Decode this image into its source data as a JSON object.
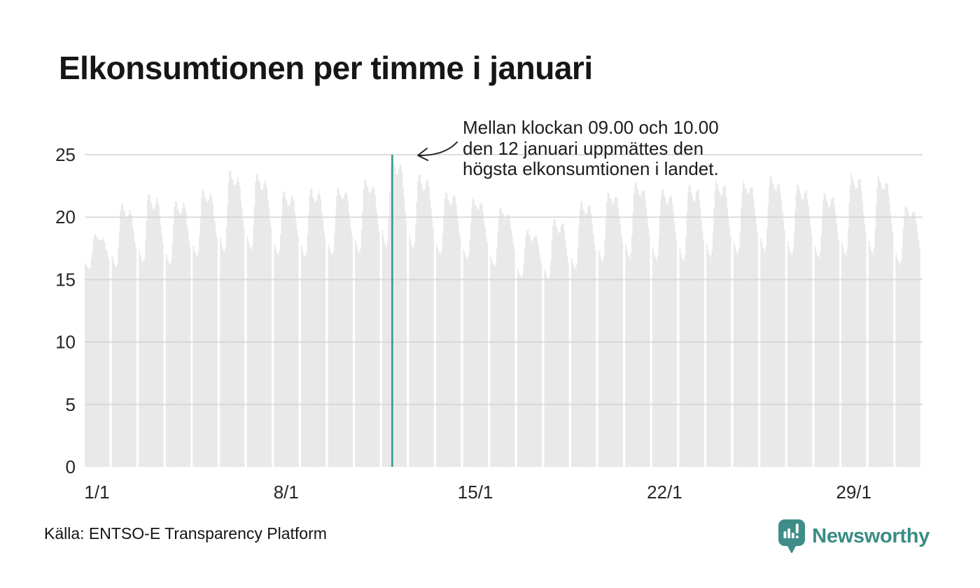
{
  "title": "Elkonsumtionen per timme i januari",
  "annotation": {
    "lines": [
      "Mellan klockan 09.00 och 10.00",
      "den 12 januari uppmättes den",
      "högsta elkonsumtionen i landet."
    ]
  },
  "source": "Källa: ENTSO-E Transparency Platform",
  "branding": {
    "name": "Newsworthy"
  },
  "colors": {
    "bar": "#e9e9e9",
    "gridline": "#d4d4d4",
    "marker": "#2a9a8c",
    "brand": "#3a8c85",
    "text": "#1c1c1c"
  },
  "chart_data": {
    "type": "bar",
    "title": "Elkonsumtionen per timme i januari",
    "xlabel": "",
    "ylabel": "",
    "ylim": [
      0,
      25
    ],
    "y_ticks": [
      0,
      5,
      10,
      15,
      20,
      25
    ],
    "x_ticks": [
      {
        "day": 1,
        "label": "1/1"
      },
      {
        "day": 8,
        "label": "8/1"
      },
      {
        "day": 15,
        "label": "15/1"
      },
      {
        "day": 22,
        "label": "22/1"
      },
      {
        "day": 29,
        "label": "29/1"
      }
    ],
    "grid": true,
    "legend": false,
    "hours_per_day": 24,
    "hourly_profile": [
      0.18,
      0.1,
      0.05,
      0.02,
      0.0,
      0.07,
      0.32,
      0.62,
      0.87,
      1.0,
      0.97,
      0.92,
      0.86,
      0.82,
      0.8,
      0.82,
      0.88,
      0.93,
      0.9,
      0.8,
      0.66,
      0.53,
      0.4,
      0.28
    ],
    "days": [
      {
        "date": "1/1",
        "night_min": 15.8,
        "day_peak": 18.6
      },
      {
        "date": "2/1",
        "night_min": 16.0,
        "day_peak": 21.0
      },
      {
        "date": "3/1",
        "night_min": 16.4,
        "day_peak": 21.8
      },
      {
        "date": "4/1",
        "night_min": 16.2,
        "day_peak": 21.3
      },
      {
        "date": "5/1",
        "night_min": 16.8,
        "day_peak": 22.2
      },
      {
        "date": "6/1",
        "night_min": 17.2,
        "day_peak": 23.7
      },
      {
        "date": "7/1",
        "night_min": 17.4,
        "day_peak": 23.4
      },
      {
        "date": "8/1",
        "night_min": 17.0,
        "day_peak": 22.0
      },
      {
        "date": "9/1",
        "night_min": 16.8,
        "day_peak": 22.3
      },
      {
        "date": "10/1",
        "night_min": 16.9,
        "day_peak": 22.4
      },
      {
        "date": "11/1",
        "night_min": 17.1,
        "day_peak": 23.0
      },
      {
        "date": "12/1",
        "night_min": 17.6,
        "day_peak": 24.9
      },
      {
        "date": "13/1",
        "night_min": 17.5,
        "day_peak": 23.4
      },
      {
        "date": "14/1",
        "night_min": 17.0,
        "day_peak": 22.0
      },
      {
        "date": "15/1",
        "night_min": 16.6,
        "day_peak": 21.5
      },
      {
        "date": "16/1",
        "night_min": 16.0,
        "day_peak": 20.7
      },
      {
        "date": "17/1",
        "night_min": 15.2,
        "day_peak": 18.9
      },
      {
        "date": "18/1",
        "night_min": 15.0,
        "day_peak": 19.8
      },
      {
        "date": "19/1",
        "night_min": 15.8,
        "day_peak": 21.3
      },
      {
        "date": "20/1",
        "night_min": 16.4,
        "day_peak": 22.1
      },
      {
        "date": "21/1",
        "night_min": 16.7,
        "day_peak": 22.8
      },
      {
        "date": "22/1",
        "night_min": 16.6,
        "day_peak": 22.2
      },
      {
        "date": "23/1",
        "night_min": 16.5,
        "day_peak": 22.6
      },
      {
        "date": "24/1",
        "night_min": 16.8,
        "day_peak": 22.9
      },
      {
        "date": "25/1",
        "night_min": 17.0,
        "day_peak": 22.9
      },
      {
        "date": "26/1",
        "night_min": 17.2,
        "day_peak": 23.3
      },
      {
        "date": "27/1",
        "night_min": 17.0,
        "day_peak": 22.6
      },
      {
        "date": "28/1",
        "night_min": 16.8,
        "day_peak": 21.9
      },
      {
        "date": "29/1",
        "night_min": 16.9,
        "day_peak": 23.5
      },
      {
        "date": "30/1",
        "night_min": 17.0,
        "day_peak": 23.3
      },
      {
        "date": "31/1",
        "night_min": 16.2,
        "day_peak": 20.9
      }
    ],
    "noise_amp": 0.28,
    "peak_marker": {
      "date": "12/1",
      "day_index": 12,
      "hour": 9,
      "value": 24.9
    }
  }
}
